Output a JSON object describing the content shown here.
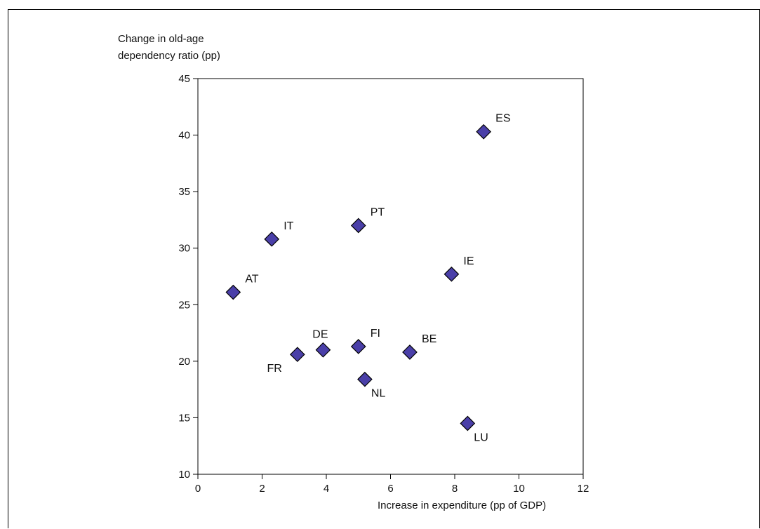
{
  "chart_data": {
    "type": "scatter",
    "title": "",
    "xlabel": "Increase in expenditure (pp of GDP)",
    "ylabel_lines": [
      "Change in old-age",
      "dependency ratio (pp)"
    ],
    "xlim": [
      0,
      12
    ],
    "ylim": [
      10,
      45
    ],
    "xticks": [
      0,
      2,
      4,
      6,
      8,
      10,
      12
    ],
    "yticks": [
      10,
      15,
      20,
      25,
      30,
      35,
      40,
      45
    ],
    "grid": false,
    "legend": "none",
    "marker": "diamond",
    "marker_color": "#4a3fa8",
    "points": [
      {
        "label": "ES",
        "x": 8.9,
        "y": 40.3,
        "label_pos": "right-up"
      },
      {
        "label": "PT",
        "x": 5.0,
        "y": 32.0,
        "label_pos": "right-up"
      },
      {
        "label": "IT",
        "x": 2.3,
        "y": 30.8,
        "label_pos": "right-up"
      },
      {
        "label": "IE",
        "x": 7.9,
        "y": 27.7,
        "label_pos": "right-up"
      },
      {
        "label": "AT",
        "x": 1.1,
        "y": 26.1,
        "label_pos": "right-up"
      },
      {
        "label": "DE",
        "x": 3.9,
        "y": 21.0,
        "label_pos": "up"
      },
      {
        "label": "FI",
        "x": 5.0,
        "y": 21.3,
        "label_pos": "right-up"
      },
      {
        "label": "BE",
        "x": 6.6,
        "y": 20.8,
        "label_pos": "right-up"
      },
      {
        "label": "FR",
        "x": 3.1,
        "y": 20.6,
        "label_pos": "left-down"
      },
      {
        "label": "NL",
        "x": 5.2,
        "y": 18.4,
        "label_pos": "right-down"
      },
      {
        "label": "LU",
        "x": 8.4,
        "y": 14.5,
        "label_pos": "right-down"
      }
    ]
  }
}
